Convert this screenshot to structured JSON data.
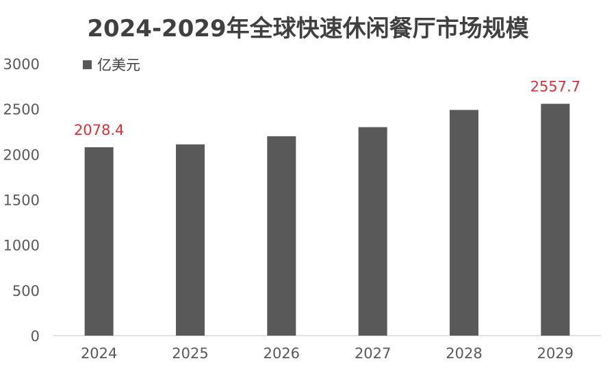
{
  "chart_data": {
    "type": "bar",
    "title": "2024-2029年全球快速休闲餐厅市场规模",
    "categories": [
      "2024",
      "2025",
      "2026",
      "2027",
      "2028",
      "2029"
    ],
    "series": [
      {
        "name": "亿美元",
        "values": [
          2078.4,
          2110,
          2200,
          2300,
          2490,
          2557.7
        ],
        "color": "#595959"
      }
    ],
    "data_labels": [
      {
        "category": "2024",
        "text": "2078.4"
      },
      {
        "category": "2029",
        "text": "2557.7"
      }
    ],
    "data_label_color": "#d9303a",
    "ylim": [
      0,
      3000
    ],
    "yticks": [
      0,
      500,
      1000,
      1500,
      2000,
      2500,
      3000
    ],
    "grid": false,
    "legend_position": "top-left"
  }
}
